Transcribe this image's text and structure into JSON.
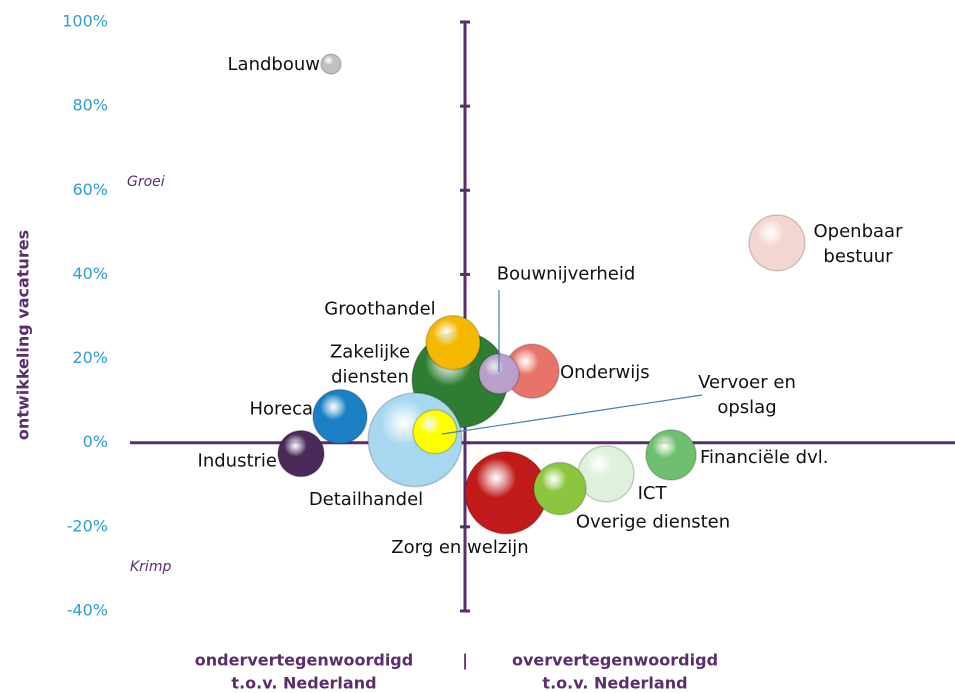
{
  "chart_data": {
    "type": "bubble",
    "y_label": "ontwikkeling vacatures",
    "annotations": [
      "Groei",
      "Krimp"
    ],
    "x_label_left": [
      "ondervertegenwoordigd",
      "t.o.v. Nederland"
    ],
    "x_label_separator": "|",
    "x_label_right": [
      "oververtegenwoordigd",
      "t.o.v. Nederland"
    ],
    "xlim": [
      -3.35,
      4.9
    ],
    "ylim": [
      -40,
      100
    ],
    "yticks": [
      {
        "value": -40,
        "label": "-40%"
      },
      {
        "value": -20,
        "label": "-20%"
      },
      {
        "value": 0,
        "label": "0%"
      },
      {
        "value": 20,
        "label": "20%"
      },
      {
        "value": 40,
        "label": "40%"
      },
      {
        "value": 60,
        "label": "60%"
      },
      {
        "value": 80,
        "label": "80%"
      },
      {
        "value": 100,
        "label": "100%"
      }
    ],
    "points": [
      {
        "name": "Zakelijke diensten",
        "color": "#2e7d32",
        "x": -0.05,
        "y": 15,
        "size": 23
      },
      {
        "name": "Detailhandel",
        "color": "#a8d8f0",
        "x": -0.5,
        "y": 0.7,
        "size": 22
      },
      {
        "name": "Groothandel",
        "color": "#f5b800",
        "x": -0.12,
        "y": 23.8,
        "size": 7.3
      },
      {
        "name": "Onderwijs",
        "color": "#e8736a",
        "x": 0.67,
        "y": 17,
        "size": 7.3
      },
      {
        "name": "Bouwnijverheid",
        "color": "#b9a0cc",
        "x": 0.34,
        "y": 16.4,
        "size": 4
      },
      {
        "name": "Horeca",
        "color": "#1a7fc4",
        "x": -1.25,
        "y": 6.2,
        "size": 7.3
      },
      {
        "name": "Industrie",
        "color": "#4b2a5a",
        "x": -1.64,
        "y": -2.6,
        "size": 5.3
      },
      {
        "name": "Vervoer en opslag",
        "color": "#ffff00",
        "x": -0.3,
        "y": 2.6,
        "size": 4.8
      },
      {
        "name": "Zorg en welzijn",
        "color": "#c01a1a",
        "x": 0.41,
        "y": -11.9,
        "size": 16.8
      },
      {
        "name": "ICT",
        "color": "#dff0dc",
        "x": 1.41,
        "y": -7.4,
        "size": 7.8
      },
      {
        "name": "Overige diensten",
        "color": "#8cc63f",
        "x": 0.95,
        "y": -10.9,
        "size": 6.8
      },
      {
        "name": "Financiële dvl.",
        "color": "#6ebf6e",
        "x": 2.06,
        "y": -2.9,
        "size": 6.3
      },
      {
        "name": "Openbaar bestuur",
        "color": "#f4d6d0",
        "x": 3.12,
        "y": 47.5,
        "size": 7.8
      },
      {
        "name": "Landbouw",
        "color": "#c0c0c0",
        "x": -1.34,
        "y": 90,
        "size": 1
      }
    ]
  }
}
